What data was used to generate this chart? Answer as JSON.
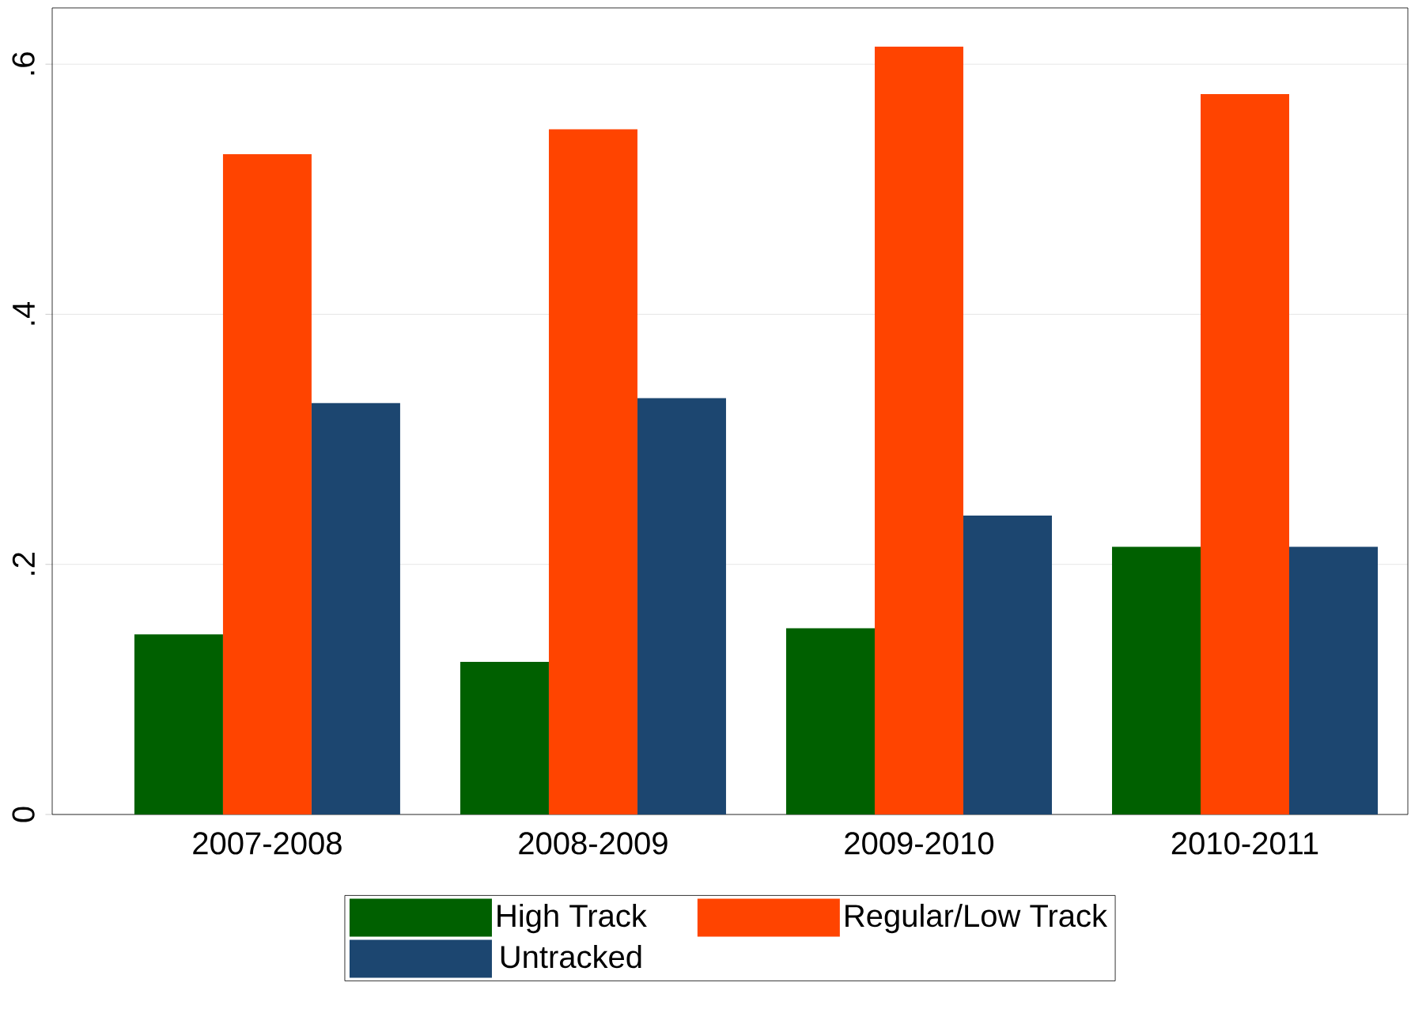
{
  "chart_data": {
    "type": "bar",
    "categories": [
      "2007-2008",
      "2008-2009",
      "2009-2010",
      "2010-2011"
    ],
    "series": [
      {
        "name": "High Track",
        "color": "#006000",
        "values": [
          0.144,
          0.122,
          0.149,
          0.214
        ]
      },
      {
        "name": "Regular/Low Track",
        "color": "#ff4400",
        "values": [
          0.528,
          0.548,
          0.614,
          0.576
        ]
      },
      {
        "name": "Untracked",
        "color": "#1c4670",
        "values": [
          0.329,
          0.333,
          0.239,
          0.214
        ]
      }
    ],
    "ylim": [
      0,
      0.645
    ],
    "yticks": [
      {
        "value": 0,
        "label": "0"
      },
      {
        "value": 0.2,
        "label": ".2"
      },
      {
        "value": 0.4,
        "label": ".4"
      },
      {
        "value": 0.6,
        "label": ".6"
      }
    ],
    "grid": "y",
    "legend": "bottom"
  }
}
